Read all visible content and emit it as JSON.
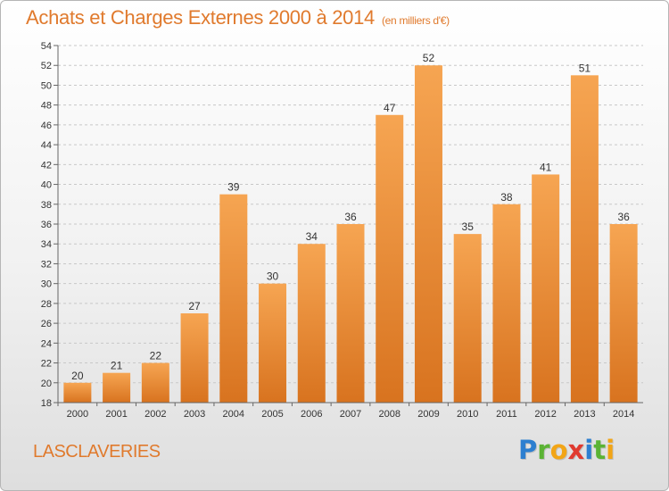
{
  "title": "Achats et Charges Externes 2000 à 2014",
  "subtitle": "(en milliers d'€)",
  "location": "LASCLAVERIES",
  "brand": {
    "letters": [
      {
        "char": "P",
        "color": "#2d7fd0"
      },
      {
        "char": "r",
        "color": "#5bb334"
      },
      {
        "char": "o",
        "color": "#f2a516"
      },
      {
        "char": "x",
        "color": "#e03a2f"
      },
      {
        "char": "i",
        "color": "#2d7fd0"
      },
      {
        "char": "t",
        "color": "#5bb334"
      },
      {
        "char": "i",
        "color": "#f2a516"
      }
    ]
  },
  "colors": {
    "accent": "#e07a2d",
    "bar_top": "#f6a552",
    "bar_bottom": "#d8731f"
  },
  "chart_data": {
    "type": "bar",
    "categories": [
      "2000",
      "2001",
      "2002",
      "2003",
      "2004",
      "2005",
      "2006",
      "2007",
      "2008",
      "2009",
      "2010",
      "2011",
      "2012",
      "2013",
      "2014"
    ],
    "values": [
      20,
      21,
      22,
      27,
      39,
      30,
      34,
      36,
      47,
      52,
      35,
      38,
      41,
      51,
      36
    ],
    "ylim": [
      18,
      54
    ],
    "yticks": [
      18,
      20,
      22,
      24,
      26,
      28,
      30,
      32,
      34,
      36,
      38,
      40,
      42,
      44,
      46,
      48,
      50,
      52,
      54
    ],
    "grid": "horizontal dashed",
    "data_labels": true
  }
}
